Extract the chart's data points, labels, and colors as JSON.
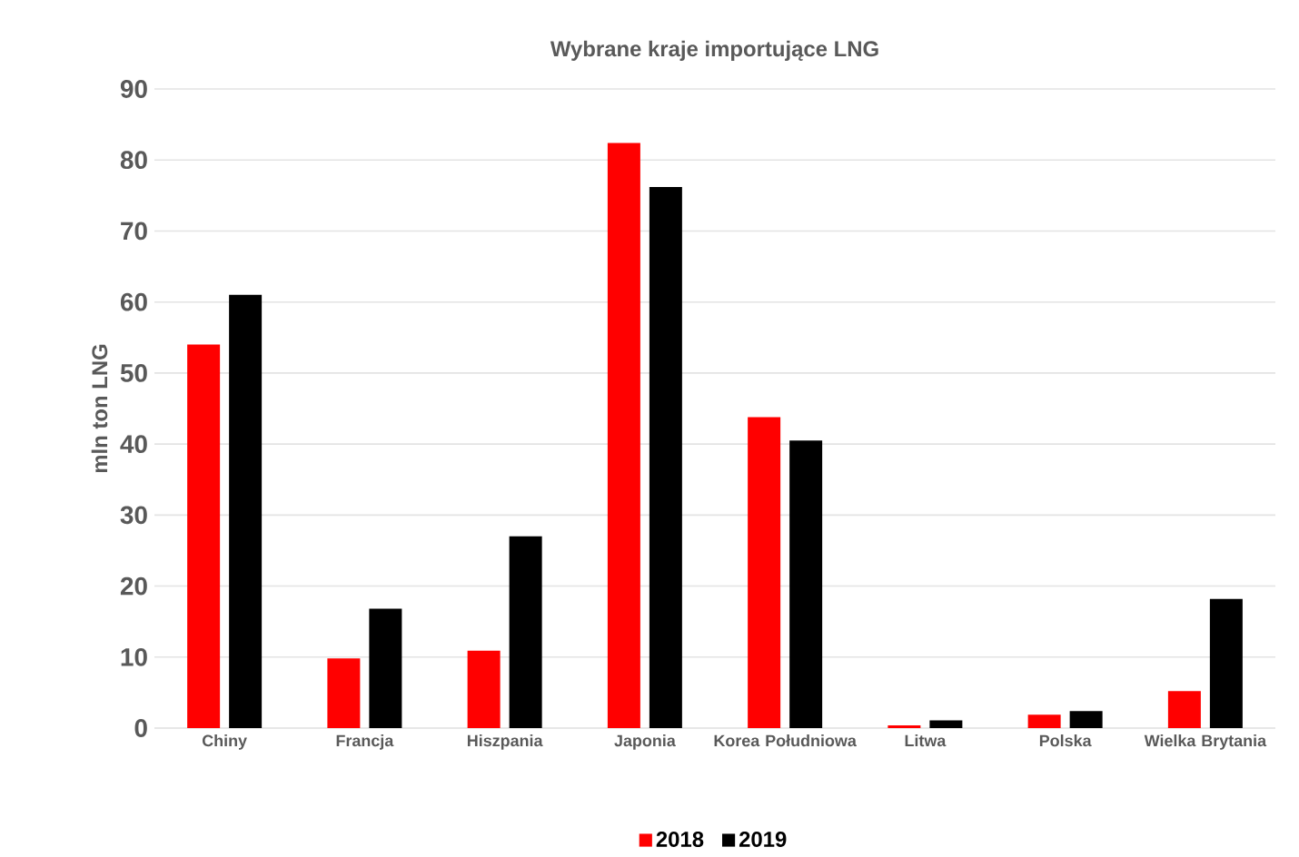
{
  "chart_data": {
    "type": "bar",
    "title": "Wybrane kraje importujące LNG",
    "ylabel": "mln ton LNG",
    "categories": [
      "Chiny",
      "Francja",
      "Hiszpania",
      "Japonia",
      "Korea Południowa",
      "Litwa",
      "Polska",
      "Wielka Brytania"
    ],
    "series": [
      {
        "name": "2018",
        "color": "#ff0000",
        "values": [
          54.0,
          9.8,
          10.9,
          82.4,
          43.8,
          0.4,
          1.9,
          5.2
        ]
      },
      {
        "name": "2019",
        "color": "#000000",
        "values": [
          61.0,
          16.8,
          27.0,
          76.2,
          40.5,
          1.1,
          2.4,
          18.2
        ]
      }
    ],
    "ylim": [
      0,
      90
    ],
    "yticks": [
      0,
      10,
      20,
      30,
      40,
      50,
      60,
      70,
      80,
      90
    ],
    "grid": "y",
    "legend": "bottom"
  }
}
